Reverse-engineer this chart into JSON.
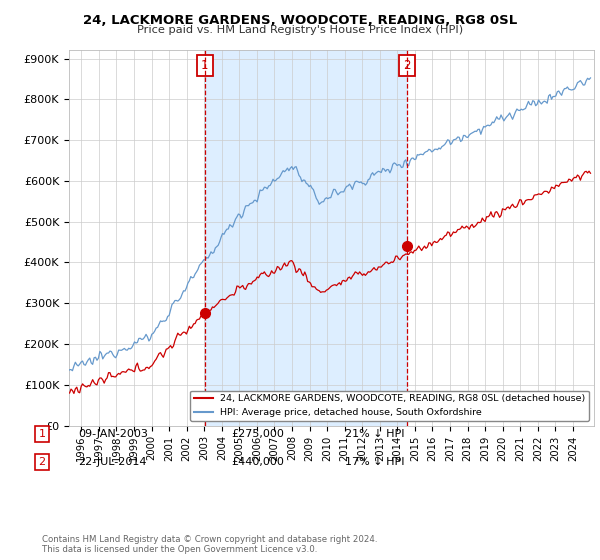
{
  "title": "24, LACKMORE GARDENS, WOODCOTE, READING, RG8 0SL",
  "subtitle": "Price paid vs. HM Land Registry's House Price Index (HPI)",
  "ylabel_ticks": [
    "£0",
    "£100K",
    "£200K",
    "£300K",
    "£400K",
    "£500K",
    "£600K",
    "£700K",
    "£800K",
    "£900K"
  ],
  "ytick_values": [
    0,
    100000,
    200000,
    300000,
    400000,
    500000,
    600000,
    700000,
    800000,
    900000
  ],
  "ylim": [
    0,
    920000
  ],
  "xlim_start": 1995.3,
  "xlim_end": 2025.2,
  "sale1_x": 2003.03,
  "sale1_y": 275000,
  "sale2_x": 2014.55,
  "sale2_y": 440000,
  "red_color": "#cc0000",
  "blue_color": "#6699cc",
  "shade_color": "#ddeeff",
  "legend_entry1": "24, LACKMORE GARDENS, WOODCOTE, READING, RG8 0SL (detached house)",
  "legend_entry2": "HPI: Average price, detached house, South Oxfordshire",
  "footer": "Contains HM Land Registry data © Crown copyright and database right 2024.\nThis data is licensed under the Open Government Licence v3.0.",
  "background_color": "#ffffff",
  "grid_color": "#cccccc"
}
